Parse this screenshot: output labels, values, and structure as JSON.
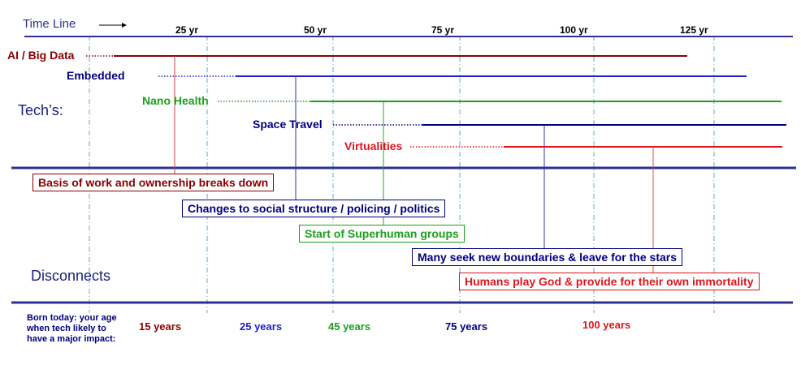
{
  "header": {
    "title": "Time Line"
  },
  "ticks": [
    "25 yr",
    "50 yr",
    "75 yr",
    "100 yr",
    "125 yr"
  ],
  "sections": {
    "techs": "Tech’s:",
    "disconnects": "Disconnects"
  },
  "colors": {
    "dark_red": "#8b0000",
    "blue": "#1f1fcc",
    "navy": "#000080",
    "green": "#1aa01a",
    "red": "#e0141b",
    "rule": "#2e3192",
    "grid": "#5fa8c8"
  },
  "techs": [
    {
      "label": "AI / Big Data",
      "color": "dark_red"
    },
    {
      "label": "Embedded",
      "color": "navy"
    },
    {
      "label": "Nano Health",
      "color": "green"
    },
    {
      "label": "Space Travel",
      "color": "navy"
    },
    {
      "label": "Virtualities",
      "color": "red"
    }
  ],
  "disconnects": [
    {
      "label": "Basis of work and ownership breaks down",
      "color": "dark_red"
    },
    {
      "label": "Changes to social structure / policing / politics",
      "color": "navy"
    },
    {
      "label": "Start of Superhuman groups",
      "color": "green"
    },
    {
      "label": "Many seek new boundaries & leave for the stars",
      "color": "navy"
    },
    {
      "label": "Humans play God & provide for their own immortality",
      "color": "red"
    }
  ],
  "footer": {
    "note": "Born today: your age when tech likely to have a major impact:",
    "ages": [
      {
        "label": "15 years",
        "color": "dark_red"
      },
      {
        "label": "25 years",
        "color": "blue"
      },
      {
        "label": "45 years",
        "color": "green"
      },
      {
        "label": "75 years",
        "color": "navy"
      },
      {
        "label": "100 years",
        "color": "red"
      }
    ]
  }
}
